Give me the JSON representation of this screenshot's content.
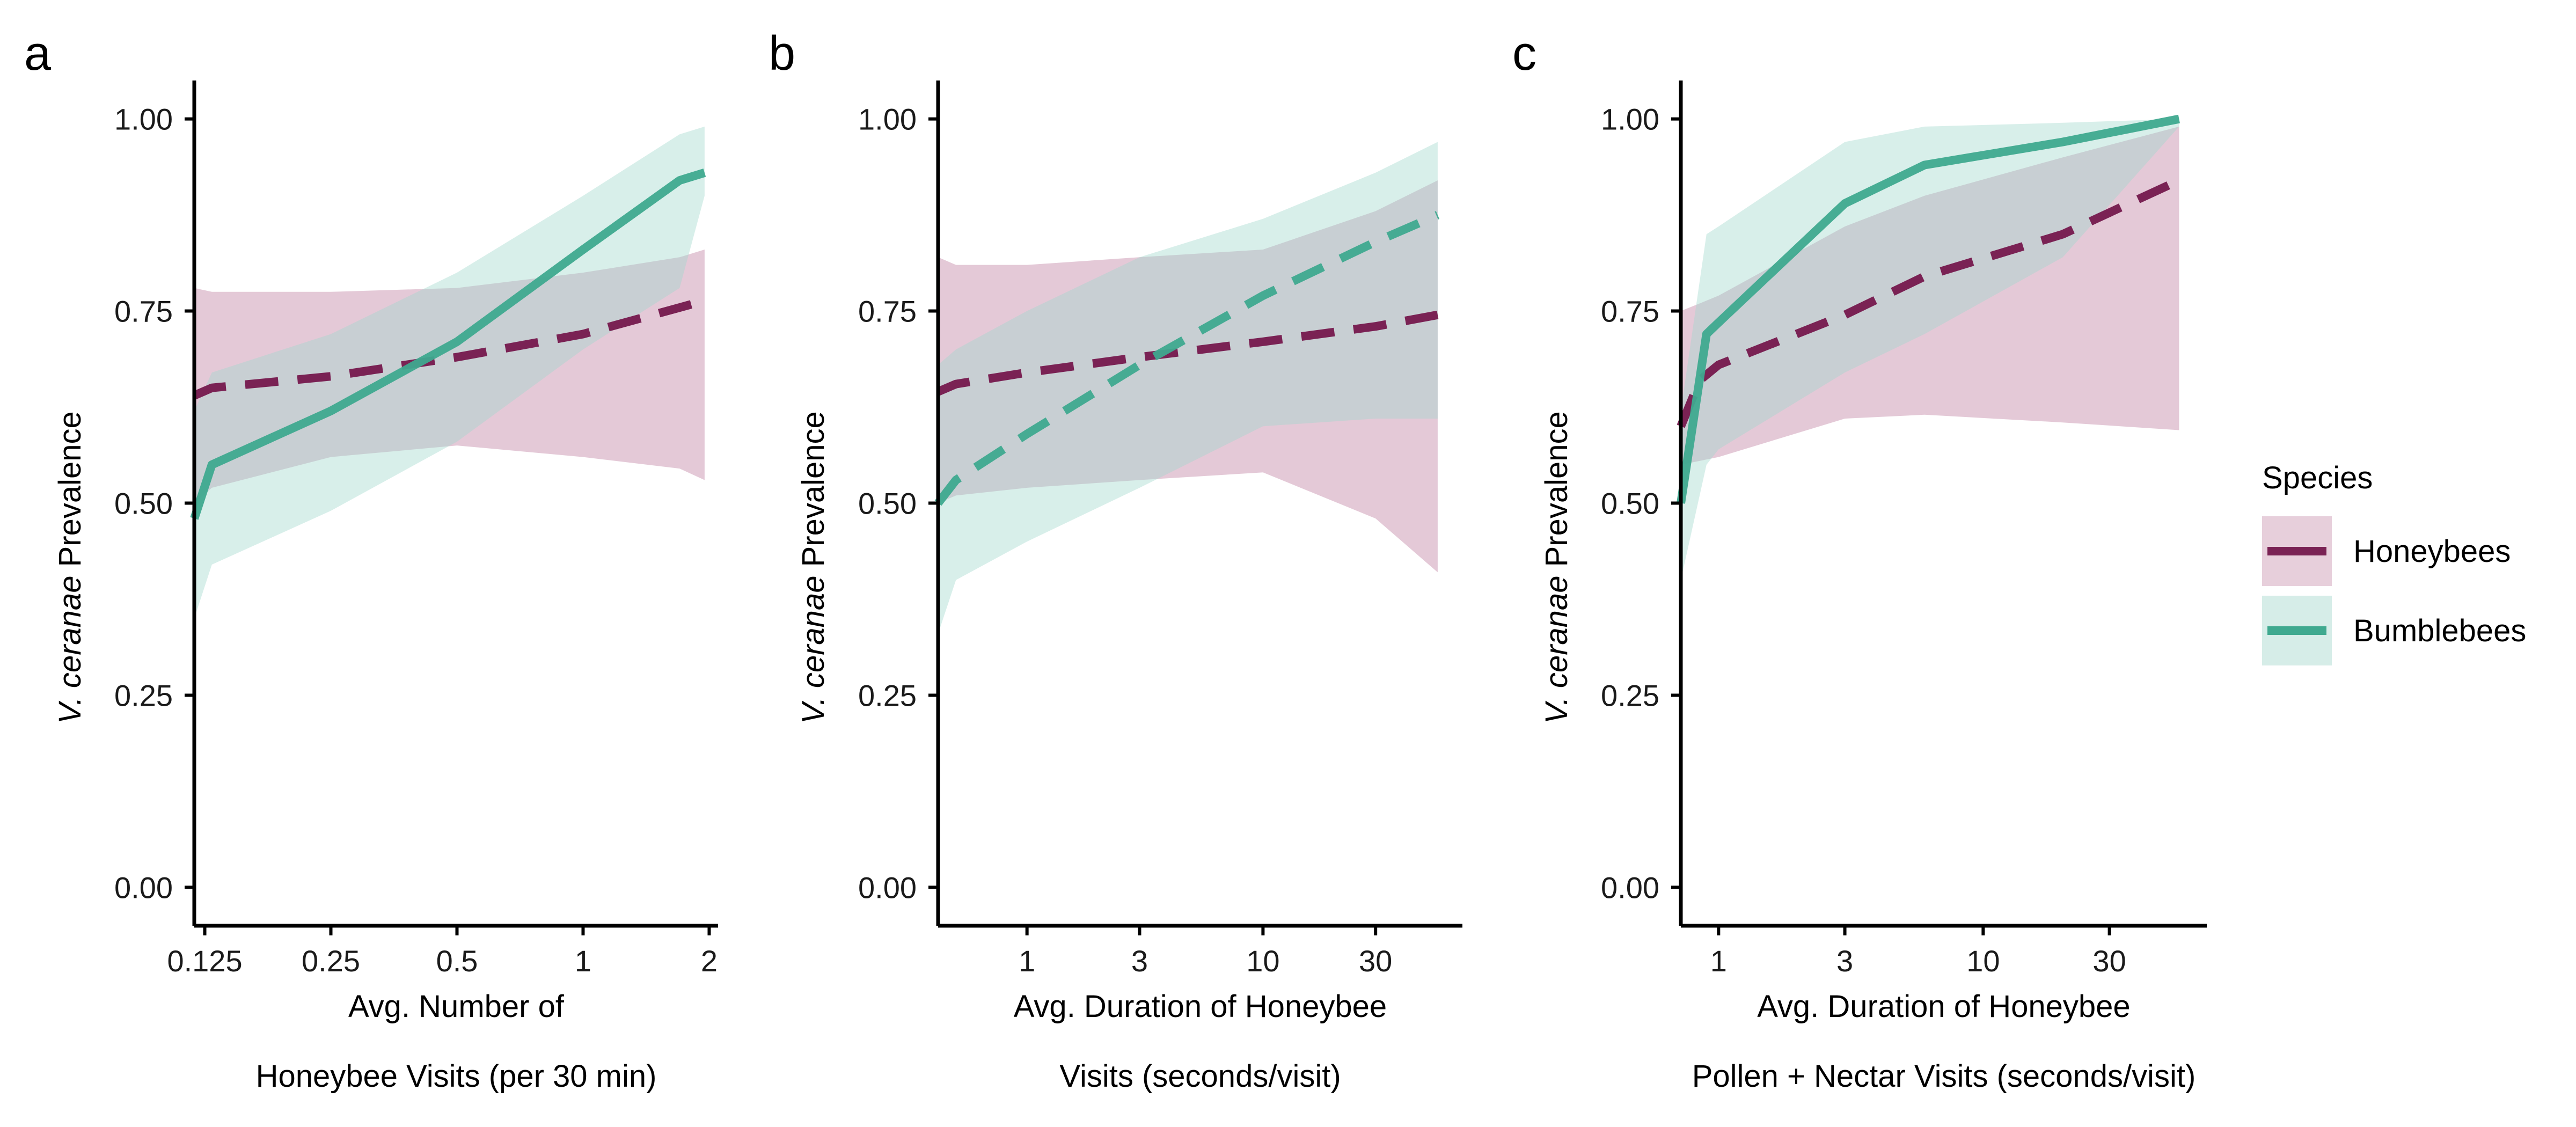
{
  "colors": {
    "honeybees": "#7A2254",
    "honeybees_ribbon": "#C994B0",
    "bumblebees": "#3FA98F",
    "bumblebees_ribbon": "#A3D8CC",
    "axis": "#000000"
  },
  "legend": {
    "title": "Species",
    "items": [
      {
        "label": "Honeybees",
        "series": "honeybees"
      },
      {
        "label": "Bumblebees",
        "series": "bumblebees"
      }
    ]
  },
  "chart_data": [
    {
      "panel": "a",
      "type": "line",
      "ylabel_italic": "V. ceranae",
      "ylabel_rest": "Prevalence",
      "xlabel_lines": [
        "Avg. Number of",
        "Honeybee Visits (per 30 min)"
      ],
      "x_scale": "log",
      "xlim": [
        0.118,
        2.1
      ],
      "ylim": [
        -0.05,
        1.05
      ],
      "x_ticks": [
        0.125,
        0.25,
        0.5,
        1,
        2
      ],
      "x_tick_labels": [
        "0.125",
        "0.25",
        "0.5",
        "1",
        "2"
      ],
      "y_ticks": [
        0,
        0.25,
        0.5,
        0.75,
        1
      ],
      "y_tick_labels": [
        "0.00",
        "0.25",
        "0.50",
        "0.75",
        "1.00"
      ],
      "series": [
        {
          "name": "Honeybees",
          "key": "honeybees",
          "dash": "dashed",
          "x": [
            0.118,
            0.13,
            0.25,
            0.5,
            1,
            1.85
          ],
          "y": [
            0.64,
            0.65,
            0.665,
            0.69,
            0.72,
            0.76
          ],
          "lower": [
            0.5,
            0.52,
            0.545,
            0.57,
            0.6,
            0.72
          ],
          "upper": [
            0.78,
            0.775,
            0.77,
            0.78,
            0.79,
            0.8
          ]
        },
        {
          "name": "Bumblebees",
          "key": "bumblebees",
          "dash": "solid",
          "x": [
            0.118,
            0.13,
            0.25,
            0.5,
            1,
            1.7,
            1.95
          ],
          "y": [
            0.48,
            0.55,
            0.62,
            0.71,
            0.83,
            0.92,
            0.93
          ],
          "lower": [
            0.35,
            0.42,
            0.49,
            0.58,
            0.7,
            0.78,
            0.9
          ],
          "upper": [
            0.62,
            0.67,
            0.72,
            0.8,
            0.9,
            0.98,
            0.99
          ]
        }
      ],
      "honeybee_ribbon_override": {
        "x": [
          0.118,
          0.13,
          0.25,
          0.5,
          1,
          1.7,
          1.95
        ],
        "lower": [
          0.5,
          0.52,
          0.56,
          0.575,
          0.56,
          0.545,
          0.53
        ],
        "upper": [
          0.78,
          0.775,
          0.775,
          0.78,
          0.8,
          0.82,
          0.83
        ]
      }
    },
    {
      "panel": "b",
      "type": "line",
      "ylabel_italic": "V. ceranae",
      "ylabel_rest": "Prevalence",
      "xlabel_lines": [
        "Avg. Duration of Honeybee",
        "Visits (seconds/visit)"
      ],
      "x_scale": "log",
      "xlim": [
        0.42,
        70
      ],
      "ylim": [
        -0.05,
        1.05
      ],
      "x_ticks": [
        1,
        3,
        10,
        30
      ],
      "x_tick_labels": [
        "1",
        "3",
        "10",
        "30"
      ],
      "y_ticks": [
        0,
        0.25,
        0.5,
        0.75,
        1
      ],
      "y_tick_labels": [
        "0.00",
        "0.25",
        "0.50",
        "0.75",
        "1.00"
      ],
      "series": [
        {
          "name": "Honeybees",
          "key": "honeybees",
          "dash": "dashed",
          "x": [
            0.42,
            0.5,
            1,
            3,
            10,
            30,
            55
          ],
          "y": [
            0.645,
            0.655,
            0.67,
            0.69,
            0.71,
            0.73,
            0.745
          ],
          "lower": [
            0.5,
            0.51,
            0.52,
            0.53,
            0.54,
            0.48,
            0.41
          ],
          "upper": [
            0.82,
            0.81,
            0.81,
            0.82,
            0.83,
            0.88,
            0.92
          ]
        },
        {
          "name": "Bumblebees",
          "key": "bumblebees",
          "dash": "dashed",
          "x": [
            0.42,
            0.5,
            1,
            3,
            10,
            30,
            55
          ],
          "y": [
            0.5,
            0.53,
            0.59,
            0.68,
            0.77,
            0.84,
            0.875
          ],
          "lower": [
            0.33,
            0.4,
            0.45,
            0.52,
            0.6,
            0.61,
            0.61
          ],
          "upper": [
            0.68,
            0.7,
            0.75,
            0.82,
            0.87,
            0.93,
            0.97
          ]
        }
      ]
    },
    {
      "panel": "c",
      "type": "line",
      "ylabel_italic": "V. ceranae",
      "ylabel_rest": "Prevalence",
      "xlabel_lines": [
        "Avg. Duration of Honeybee",
        "Pollen + Nectar Visits (seconds/visit)"
      ],
      "x_scale": "log",
      "xlim": [
        0.72,
        70
      ],
      "ylim": [
        -0.05,
        1.05
      ],
      "x_ticks": [
        1,
        3,
        10,
        30
      ],
      "x_tick_labels": [
        "1",
        "3",
        "10",
        "30"
      ],
      "y_ticks": [
        0,
        0.25,
        0.5,
        0.75,
        1
      ],
      "y_tick_labels": [
        "0.00",
        "0.25",
        "0.50",
        "0.75",
        "1.00"
      ],
      "series": [
        {
          "name": "Honeybees",
          "key": "honeybees",
          "dash": "dashed",
          "x": [
            0.72,
            0.85,
            1,
            3,
            6,
            20,
            55
          ],
          "y": [
            0.6,
            0.66,
            0.68,
            0.745,
            0.795,
            0.85,
            0.92
          ],
          "lower": [
            0.55,
            0.555,
            0.56,
            0.61,
            0.615,
            0.605,
            0.595
          ],
          "upper": [
            0.75,
            0.76,
            0.77,
            0.86,
            0.9,
            0.95,
            0.99
          ]
        },
        {
          "name": "Bumblebees",
          "key": "bumblebees",
          "dash": "solid",
          "x": [
            0.72,
            0.9,
            1,
            3,
            6,
            20,
            55
          ],
          "y": [
            0.5,
            0.72,
            0.735,
            0.89,
            0.94,
            0.97,
            1.0
          ],
          "lower": [
            0.4,
            0.55,
            0.57,
            0.67,
            0.72,
            0.82,
            0.99
          ],
          "upper": [
            0.62,
            0.85,
            0.86,
            0.97,
            0.99,
            0.995,
            1.0
          ]
        }
      ]
    }
  ]
}
